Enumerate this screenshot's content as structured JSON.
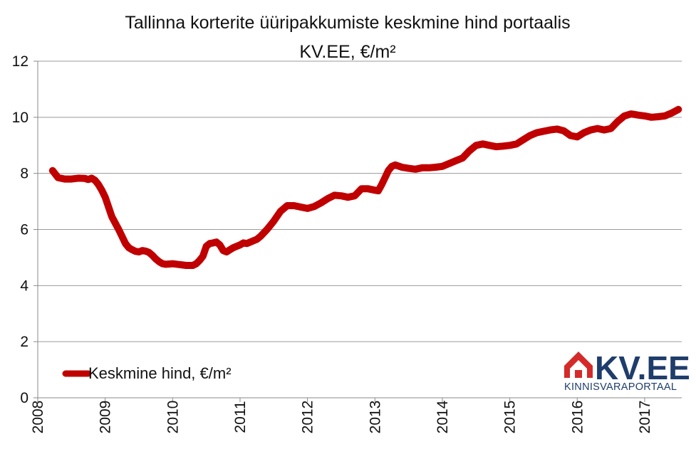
{
  "chart_data": {
    "type": "line",
    "title_lines": [
      "Tallinna korterite üüripakkumiste keskmine hind portaalis",
      "KV.EE, €/m²"
    ],
    "xlabel": "",
    "ylabel": "",
    "ylim": [
      0,
      12
    ],
    "yticks": [
      "0",
      "2",
      "4",
      "6",
      "8",
      "10",
      "12"
    ],
    "xlim": [
      2008,
      2017.55
    ],
    "xticks": [
      "2008",
      "2009",
      "2010",
      "2011",
      "2012",
      "2013",
      "2014",
      "2015",
      "2016",
      "2017"
    ],
    "grid": true,
    "legend_position": "bottom-left",
    "line_color": "#c00000",
    "series": [
      {
        "name": "Keskmine hind, €/m²",
        "x": [
          2008.22,
          2008.3,
          2008.4,
          2008.5,
          2008.6,
          2008.7,
          2008.75,
          2008.8,
          2008.85,
          2008.9,
          2008.95,
          2009.0,
          2009.05,
          2009.1,
          2009.2,
          2009.3,
          2009.35,
          2009.4,
          2009.45,
          2009.5,
          2009.55,
          2009.6,
          2009.65,
          2009.7,
          2009.75,
          2009.8,
          2009.85,
          2009.9,
          2010.0,
          2010.1,
          2010.2,
          2010.3,
          2010.35,
          2010.4,
          2010.45,
          2010.5,
          2010.55,
          2010.6,
          2010.65,
          2010.7,
          2010.75,
          2010.8,
          2010.85,
          2010.9,
          2010.95,
          2011.0,
          2011.05,
          2011.1,
          2011.15,
          2011.2,
          2011.25,
          2011.3,
          2011.4,
          2011.5,
          2011.6,
          2011.7,
          2011.8,
          2011.9,
          2012.0,
          2012.1,
          2012.2,
          2012.3,
          2012.4,
          2012.5,
          2012.6,
          2012.7,
          2012.8,
          2012.9,
          2013.0,
          2013.05,
          2013.1,
          2013.15,
          2013.2,
          2013.25,
          2013.3,
          2013.4,
          2013.5,
          2013.6,
          2013.7,
          2013.8,
          2013.9,
          2014.0,
          2014.1,
          2014.2,
          2014.3,
          2014.4,
          2014.5,
          2014.6,
          2014.7,
          2014.8,
          2014.9,
          2015.0,
          2015.1,
          2015.2,
          2015.3,
          2015.4,
          2015.5,
          2015.6,
          2015.7,
          2015.8,
          2015.9,
          2016.0,
          2016.1,
          2016.2,
          2016.3,
          2016.4,
          2016.5,
          2016.6,
          2016.7,
          2016.8,
          2016.9,
          2017.0,
          2017.1,
          2017.2,
          2017.3,
          2017.4,
          2017.5
        ],
        "y": [
          8.1,
          7.85,
          7.8,
          7.8,
          7.83,
          7.82,
          7.78,
          7.83,
          7.75,
          7.6,
          7.4,
          7.15,
          6.8,
          6.45,
          6.0,
          5.5,
          5.35,
          5.28,
          5.22,
          5.2,
          5.25,
          5.23,
          5.18,
          5.08,
          4.95,
          4.85,
          4.78,
          4.76,
          4.78,
          4.75,
          4.72,
          4.72,
          4.78,
          4.9,
          5.05,
          5.4,
          5.5,
          5.52,
          5.55,
          5.45,
          5.25,
          5.2,
          5.28,
          5.35,
          5.4,
          5.45,
          5.52,
          5.5,
          5.55,
          5.6,
          5.65,
          5.75,
          6.0,
          6.3,
          6.65,
          6.85,
          6.85,
          6.8,
          6.75,
          6.82,
          6.95,
          7.1,
          7.22,
          7.2,
          7.15,
          7.2,
          7.45,
          7.45,
          7.4,
          7.38,
          7.6,
          7.85,
          8.1,
          8.25,
          8.3,
          8.22,
          8.18,
          8.15,
          8.2,
          8.2,
          8.22,
          8.25,
          8.35,
          8.45,
          8.55,
          8.8,
          9.0,
          9.05,
          9.0,
          8.95,
          8.97,
          9.0,
          9.05,
          9.2,
          9.35,
          9.45,
          9.5,
          9.55,
          9.58,
          9.52,
          9.35,
          9.3,
          9.45,
          9.55,
          9.6,
          9.55,
          9.6,
          9.85,
          10.05,
          10.12,
          10.08,
          10.05,
          10.0,
          10.02,
          10.05,
          10.15,
          10.28
        ]
      }
    ]
  },
  "logo": {
    "main_text": "KV.EE",
    "sub_text": "KINNISVARAPORTAAL",
    "main_color": "#1f3d6b",
    "house_color": "#d42a2a"
  }
}
